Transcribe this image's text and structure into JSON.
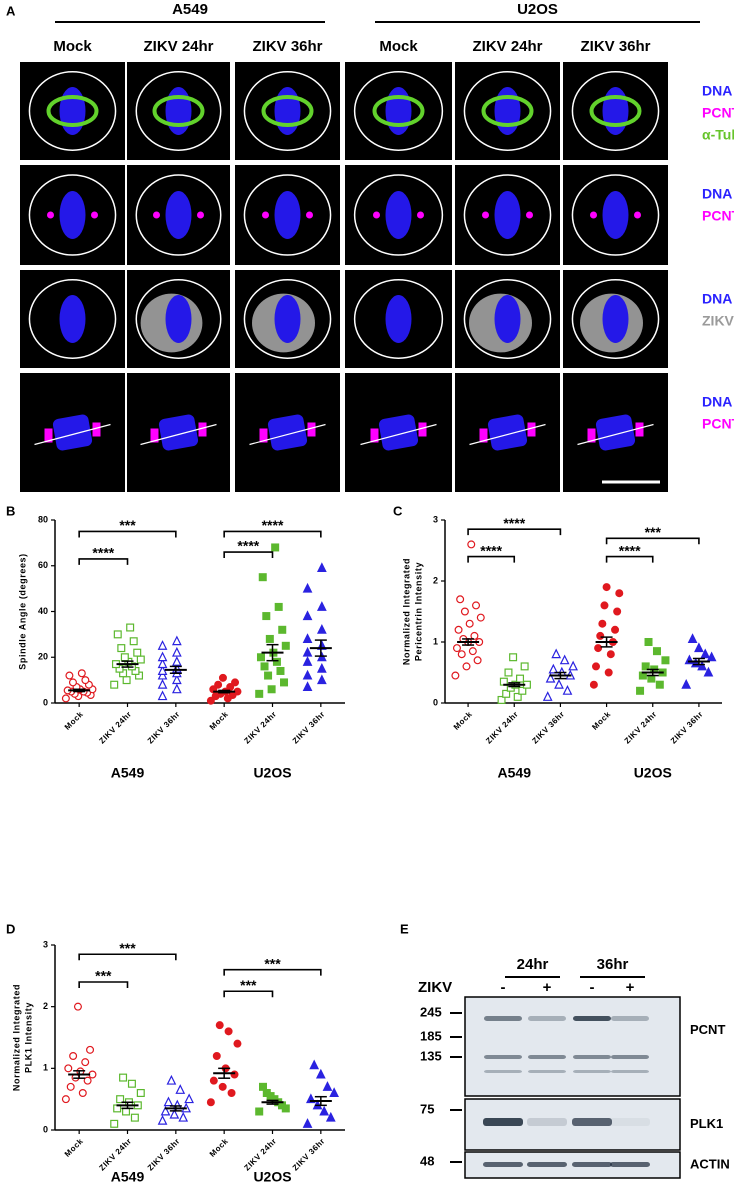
{
  "panel_a": {
    "label": "A",
    "cell_lines": [
      "A549",
      "U2OS"
    ],
    "conditions": [
      "Mock",
      "ZIKV 24hr",
      "ZIKV 36hr",
      "Mock",
      "ZIKV 24hr",
      "ZIKV 36hr"
    ],
    "row_labels": [
      [
        "DNA",
        "PCNT",
        "α-Tub"
      ],
      [
        "DNA",
        "PCNT"
      ],
      [
        "DNA",
        "ZIKV"
      ],
      [
        "DNA",
        "PCNT"
      ]
    ],
    "row_label_colors": [
      [
        "#2a22ff",
        "#ff00ff",
        "#66c42a"
      ],
      [
        "#2a22ff",
        "#ff00ff"
      ],
      [
        "#2a22ff",
        "#9a9a9a"
      ],
      [
        "#2a22ff",
        "#ff00ff"
      ]
    ]
  },
  "chart_data": [
    {
      "type": "dot",
      "panel": "B",
      "ylabel": [
        "Spindle Angle (degrees)"
      ],
      "categories": [
        "Mock",
        "ZIKV 24hr",
        "ZIKV 36hr",
        "Mock",
        "ZIKV 24hr",
        "ZIKV 36hr"
      ],
      "groups": [
        "A549",
        "U2OS"
      ],
      "colors": [
        "#e0191f",
        "#5cb82e",
        "#2a22e0",
        "#e0191f",
        "#5cb82e",
        "#2a22e0"
      ],
      "markers": [
        "circle",
        "square",
        "triangle",
        "circle",
        "square",
        "triangle"
      ],
      "filled": [
        false,
        false,
        false,
        true,
        true,
        true
      ],
      "points": [
        [
          2,
          3,
          3.5,
          4,
          4.5,
          5,
          5,
          5.5,
          6,
          6,
          7,
          8,
          9,
          10,
          12,
          13
        ],
        [
          8,
          10,
          12,
          13,
          14,
          15,
          16,
          17,
          18,
          19,
          20,
          22,
          24,
          27,
          30,
          33
        ],
        [
          3,
          6,
          8,
          10,
          12,
          13,
          14,
          15,
          17,
          18,
          20,
          22,
          25,
          27
        ],
        [
          1,
          2,
          3,
          3.5,
          4,
          5,
          5,
          6,
          7,
          8,
          9,
          11
        ],
        [
          4,
          6,
          9,
          12,
          14,
          16,
          18,
          20,
          22,
          25,
          28,
          32,
          38,
          42,
          55,
          68
        ],
        [
          7,
          10,
          12,
          15,
          18,
          20,
          22,
          25,
          28,
          32,
          38,
          42,
          50,
          59
        ]
      ],
      "means": [
        5.5,
        17,
        14.5,
        5,
        22,
        24
      ],
      "sems": [
        0.5,
        1.3,
        1.5,
        0.5,
        3.5,
        3.5
      ],
      "ylim": [
        0,
        80
      ],
      "yticks": [
        0,
        20,
        40,
        60,
        80
      ],
      "brackets": [
        {
          "from": 0,
          "to": 1,
          "y": 63,
          "label": "****"
        },
        {
          "from": 0,
          "to": 2,
          "y": 75,
          "label": "***"
        },
        {
          "from": 3,
          "to": 4,
          "y": 66,
          "label": "****"
        },
        {
          "from": 3,
          "to": 5,
          "y": 75,
          "label": "****"
        }
      ]
    },
    {
      "type": "dot",
      "panel": "C",
      "ylabel": [
        "Normalized Integrated",
        "Pericentrin Intensity"
      ],
      "categories": [
        "Mock",
        "ZIKV 24hr",
        "ZIKV 36hr",
        "Mock",
        "ZIKV 24hr",
        "ZIKV 36hr"
      ],
      "groups": [
        "A549",
        "U2OS"
      ],
      "colors": [
        "#e0191f",
        "#5cb82e",
        "#2a22e0",
        "#e0191f",
        "#5cb82e",
        "#2a22e0"
      ],
      "markers": [
        "circle",
        "square",
        "triangle",
        "circle",
        "square",
        "triangle"
      ],
      "filled": [
        false,
        false,
        false,
        true,
        true,
        true
      ],
      "points": [
        [
          0.45,
          0.6,
          0.7,
          0.8,
          0.85,
          0.9,
          1.0,
          1.0,
          1.05,
          1.1,
          1.2,
          1.3,
          1.4,
          1.5,
          1.6,
          1.7,
          2.6
        ],
        [
          0.05,
          0.1,
          0.15,
          0.2,
          0.25,
          0.3,
          0.3,
          0.35,
          0.4,
          0.5,
          0.6,
          0.75
        ],
        [
          0.1,
          0.2,
          0.3,
          0.4,
          0.45,
          0.5,
          0.55,
          0.6,
          0.7,
          0.8
        ],
        [
          0.3,
          0.5,
          0.6,
          0.8,
          0.9,
          1.0,
          1.1,
          1.2,
          1.3,
          1.5,
          1.6,
          1.8,
          1.9
        ],
        [
          0.2,
          0.3,
          0.4,
          0.45,
          0.5,
          0.55,
          0.6,
          0.7,
          0.85,
          1.0
        ],
        [
          0.3,
          0.5,
          0.6,
          0.65,
          0.7,
          0.75,
          0.8,
          0.9,
          1.05
        ]
      ],
      "means": [
        1.0,
        0.3,
        0.45,
        1.0,
        0.5,
        0.68
      ],
      "sems": [
        0.05,
        0.03,
        0.05,
        0.08,
        0.05,
        0.05
      ],
      "ylim": [
        0,
        3
      ],
      "yticks": [
        0,
        1,
        2,
        3
      ],
      "brackets": [
        {
          "from": 0,
          "to": 1,
          "y": 2.4,
          "label": "****"
        },
        {
          "from": 0,
          "to": 2,
          "y": 2.85,
          "label": "****"
        },
        {
          "from": 3,
          "to": 4,
          "y": 2.4,
          "label": "****"
        },
        {
          "from": 3,
          "to": 5,
          "y": 2.7,
          "label": "***"
        }
      ]
    },
    {
      "type": "dot",
      "panel": "D",
      "ylabel": [
        "Normalized Integrated",
        "PLK1 Intensity"
      ],
      "categories": [
        "Mock",
        "ZIKV 24hr",
        "ZIKV 36hr",
        "Mock",
        "ZIKV 24hr",
        "ZIKV 36hr"
      ],
      "groups": [
        "A549",
        "U2OS"
      ],
      "colors": [
        "#e0191f",
        "#5cb82e",
        "#2a22e0",
        "#e0191f",
        "#5cb82e",
        "#2a22e0"
      ],
      "markers": [
        "circle",
        "square",
        "triangle",
        "circle",
        "square",
        "triangle"
      ],
      "filled": [
        false,
        false,
        false,
        true,
        true,
        true
      ],
      "points": [
        [
          0.5,
          0.6,
          0.7,
          0.8,
          0.85,
          0.9,
          0.95,
          1.0,
          1.1,
          1.2,
          1.3,
          2.0
        ],
        [
          0.1,
          0.2,
          0.3,
          0.35,
          0.4,
          0.45,
          0.5,
          0.6,
          0.75,
          0.85
        ],
        [
          0.15,
          0.2,
          0.25,
          0.3,
          0.35,
          0.4,
          0.45,
          0.5,
          0.65,
          0.8
        ],
        [
          0.45,
          0.6,
          0.7,
          0.8,
          0.9,
          1.0,
          1.2,
          1.4,
          1.6,
          1.7
        ],
        [
          0.3,
          0.35,
          0.4,
          0.45,
          0.5,
          0.55,
          0.6,
          0.7
        ],
        [
          0.1,
          0.2,
          0.3,
          0.4,
          0.5,
          0.6,
          0.7,
          0.9,
          1.05
        ]
      ],
      "means": [
        0.9,
        0.4,
        0.35,
        0.92,
        0.45,
        0.47
      ],
      "sems": [
        0.06,
        0.05,
        0.04,
        0.08,
        0.03,
        0.07
      ],
      "ylim": [
        0,
        3
      ],
      "yticks": [
        0,
        1,
        2,
        3
      ],
      "brackets": [
        {
          "from": 0,
          "to": 1,
          "y": 2.4,
          "label": "***"
        },
        {
          "from": 0,
          "to": 2,
          "y": 2.85,
          "label": "***"
        },
        {
          "from": 3,
          "to": 4,
          "y": 2.25,
          "label": "***"
        },
        {
          "from": 3,
          "to": 5,
          "y": 2.6,
          "label": "***"
        }
      ]
    }
  ],
  "panel_e": {
    "label": "E",
    "timepoints": [
      "24hr",
      "36hr"
    ],
    "treatment": "ZIKV",
    "signs": [
      "-",
      "+",
      "-",
      "+"
    ],
    "mw_markers": [
      245,
      185,
      135,
      75,
      48
    ],
    "bands": [
      "PCNT",
      "PLK1",
      "ACTIN"
    ]
  }
}
